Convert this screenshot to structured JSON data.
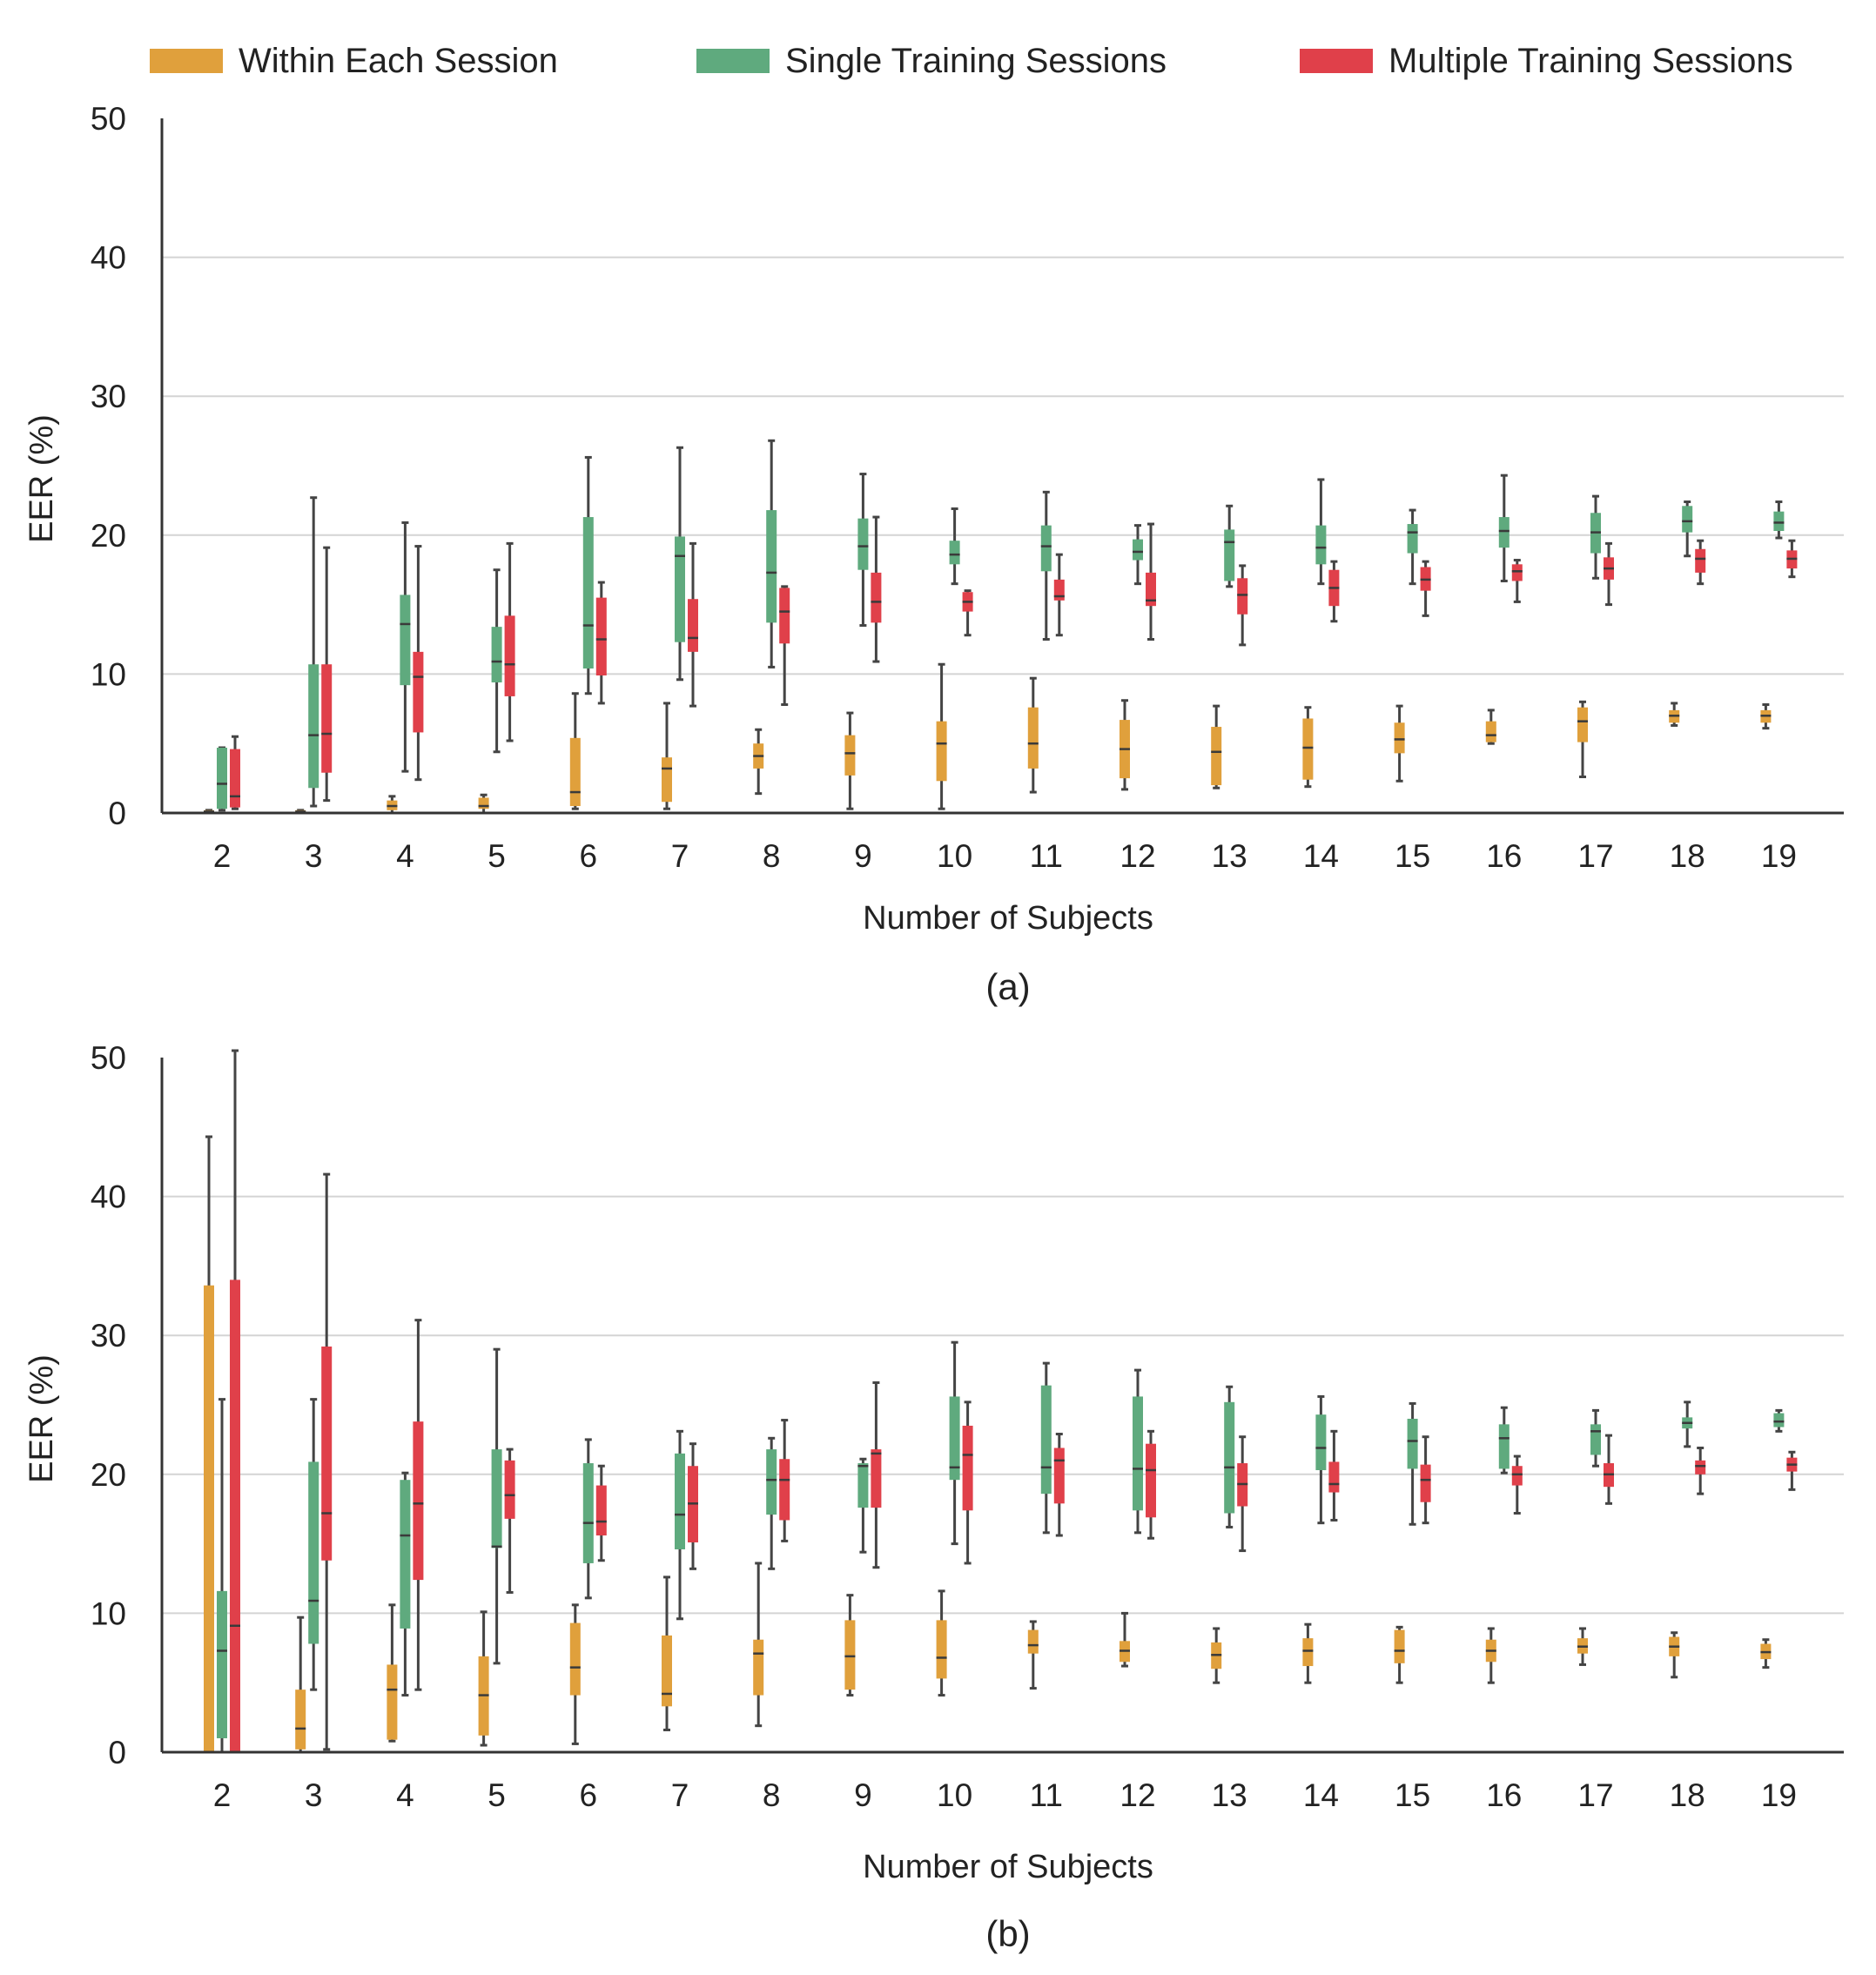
{
  "legend": [
    {
      "key": "within",
      "label": "Within Each Session",
      "color": "#E0A03C"
    },
    {
      "key": "single",
      "label": "Single Training Sessions",
      "color": "#5FAA7E"
    },
    {
      "key": "multiple",
      "label": "Multiple Training Sessions",
      "color": "#E0404A"
    }
  ],
  "chart_data": [
    {
      "type": "box",
      "caption": "(a)",
      "xlabel": "Number of Subjects",
      "ylabel": "EER (%)",
      "ylim": [
        0,
        50
      ],
      "yticks": [
        0,
        10,
        20,
        30,
        40,
        50
      ],
      "grid": true,
      "legend_position": "top",
      "categories": [
        "2",
        "3",
        "4",
        "5",
        "6",
        "7",
        "8",
        "9",
        "10",
        "11",
        "12",
        "13",
        "14",
        "15",
        "16",
        "17",
        "18",
        "19"
      ],
      "series": [
        {
          "name": "Within Each Session",
          "color": "#E0A03C",
          "boxes": [
            [
              0,
              0,
              0.1,
              0.2,
              0.2
            ],
            [
              0,
              0,
              0.1,
              0.2,
              0.2
            ],
            [
              0,
              0.2,
              0.5,
              0.9,
              1.2
            ],
            [
              0,
              0.3,
              0.5,
              1.1,
              1.3
            ],
            [
              0.3,
              0.5,
              1.5,
              5.4,
              8.6
            ],
            [
              0.3,
              0.8,
              3.2,
              4.0,
              7.9
            ],
            [
              1.4,
              3.2,
              4.1,
              5.0,
              6.0
            ],
            [
              0.3,
              2.7,
              4.3,
              5.6,
              7.2
            ],
            [
              0.3,
              2.3,
              5.0,
              6.6,
              10.7
            ],
            [
              1.5,
              3.2,
              5.0,
              7.6,
              9.7
            ],
            [
              1.7,
              2.5,
              4.6,
              6.7,
              8.1
            ],
            [
              1.8,
              2.0,
              4.4,
              6.2,
              7.7
            ],
            [
              1.9,
              2.4,
              4.7,
              6.8,
              7.6
            ],
            [
              2.3,
              4.3,
              5.3,
              6.5,
              7.7
            ],
            [
              5.0,
              5.1,
              5.6,
              6.6,
              7.4
            ],
            [
              2.6,
              5.1,
              6.6,
              7.6,
              8.0
            ],
            [
              6.3,
              6.5,
              7.0,
              7.4,
              7.9
            ],
            [
              6.1,
              6.5,
              7.0,
              7.4,
              7.8
            ]
          ]
        },
        {
          "name": "Single Training Sessions",
          "color": "#5FAA7E",
          "boxes": [
            [
              0.2,
              0.3,
              2.1,
              4.7,
              4.7
            ],
            [
              0.5,
              1.8,
              5.6,
              10.7,
              22.7
            ],
            [
              3.0,
              9.2,
              13.6,
              15.7,
              20.9
            ],
            [
              4.4,
              9.4,
              10.9,
              13.4,
              17.5
            ],
            [
              8.6,
              10.4,
              13.5,
              21.3,
              25.6
            ],
            [
              9.6,
              12.3,
              18.5,
              19.9,
              26.3
            ],
            [
              10.5,
              13.7,
              17.3,
              21.8,
              26.8
            ],
            [
              13.5,
              17.5,
              19.2,
              21.2,
              24.4
            ],
            [
              16.5,
              17.9,
              18.6,
              19.6,
              21.9
            ],
            [
              12.5,
              17.4,
              19.2,
              20.7,
              23.1
            ],
            [
              16.5,
              18.2,
              18.8,
              19.7,
              20.7
            ],
            [
              16.3,
              16.7,
              19.5,
              20.4,
              22.1
            ],
            [
              16.5,
              17.9,
              19.1,
              20.7,
              24.0
            ],
            [
              16.5,
              18.7,
              20.2,
              20.8,
              21.8
            ],
            [
              16.7,
              19.1,
              20.3,
              21.3,
              24.3
            ],
            [
              16.9,
              18.7,
              20.2,
              21.6,
              22.8
            ],
            [
              18.5,
              20.2,
              21.0,
              22.1,
              22.4
            ],
            [
              19.8,
              20.3,
              20.9,
              21.7,
              22.4
            ]
          ]
        },
        {
          "name": "Multiple Training Sessions",
          "color": "#E0404A",
          "boxes": [
            [
              0.3,
              0.4,
              1.2,
              4.6,
              5.5
            ],
            [
              0.9,
              2.9,
              5.7,
              10.7,
              19.1
            ],
            [
              2.4,
              5.8,
              9.8,
              11.6,
              19.2
            ],
            [
              5.2,
              8.4,
              10.7,
              14.2,
              19.4
            ],
            [
              7.9,
              9.9,
              12.5,
              15.5,
              16.6
            ],
            [
              7.7,
              11.6,
              12.6,
              15.4,
              19.4
            ],
            [
              7.8,
              12.2,
              14.5,
              16.2,
              16.3
            ],
            [
              10.9,
              13.7,
              15.2,
              17.3,
              21.3
            ],
            [
              12.8,
              14.5,
              15.2,
              15.9,
              16.0
            ],
            [
              12.8,
              15.3,
              15.6,
              16.8,
              18.6
            ],
            [
              12.5,
              14.9,
              15.3,
              17.3,
              20.8
            ],
            [
              12.1,
              14.3,
              15.7,
              16.9,
              17.8
            ],
            [
              13.8,
              14.9,
              16.2,
              17.5,
              18.1
            ],
            [
              14.2,
              16.0,
              16.8,
              17.7,
              18.1
            ],
            [
              15.2,
              16.7,
              17.4,
              17.9,
              18.2
            ],
            [
              15.0,
              16.8,
              17.6,
              18.4,
              19.4
            ],
            [
              16.5,
              17.3,
              18.3,
              19.0,
              19.6
            ],
            [
              17.0,
              17.6,
              18.3,
              18.9,
              19.6
            ]
          ]
        }
      ]
    },
    {
      "type": "box",
      "caption": "(b)",
      "xlabel": "Number of Subjects",
      "ylabel": "EER (%)",
      "ylim": [
        0,
        50
      ],
      "yticks": [
        0,
        10,
        20,
        30,
        40,
        50
      ],
      "grid": true,
      "categories": [
        "2",
        "3",
        "4",
        "5",
        "6",
        "7",
        "8",
        "9",
        "10",
        "11",
        "12",
        "13",
        "14",
        "15",
        "16",
        "17",
        "18",
        "19"
      ],
      "series": [
        {
          "name": "Within Each Session",
          "color": "#E0A03C",
          "boxes": [
            [
              0,
              0,
              0,
              33.6,
              44.3
            ],
            [
              0,
              0.2,
              1.7,
              4.5,
              9.7
            ],
            [
              0.8,
              0.9,
              4.5,
              6.3,
              10.6
            ],
            [
              0.5,
              1.2,
              4.1,
              6.9,
              10.1
            ],
            [
              0.6,
              4.1,
              6.1,
              9.3,
              10.6
            ],
            [
              1.6,
              3.3,
              4.2,
              8.4,
              12.6
            ],
            [
              1.9,
              4.1,
              7.1,
              8.1,
              13.6
            ],
            [
              4.1,
              4.5,
              6.9,
              9.5,
              11.3
            ],
            [
              4.1,
              5.3,
              6.8,
              9.5,
              11.6
            ],
            [
              4.6,
              7.1,
              7.7,
              8.8,
              9.4
            ],
            [
              6.2,
              6.5,
              7.3,
              8.0,
              10.0
            ],
            [
              5.0,
              6.0,
              7.0,
              7.9,
              8.9
            ],
            [
              5.0,
              6.2,
              7.3,
              8.2,
              9.2
            ],
            [
              5.0,
              6.4,
              7.3,
              8.8,
              9.0
            ],
            [
              5.0,
              6.5,
              7.3,
              8.1,
              8.9
            ],
            [
              6.3,
              7.1,
              7.6,
              8.2,
              8.9
            ],
            [
              5.4,
              6.9,
              7.6,
              8.3,
              8.6
            ],
            [
              6.1,
              6.7,
              7.2,
              7.8,
              8.1
            ]
          ]
        },
        {
          "name": "Single Training Sessions",
          "color": "#5FAA7E",
          "boxes": [
            [
              0,
              1.0,
              7.3,
              11.6,
              25.4
            ],
            [
              4.5,
              7.8,
              10.9,
              20.9,
              25.4
            ],
            [
              4.1,
              8.9,
              15.6,
              19.6,
              20.1
            ],
            [
              6.4,
              14.7,
              14.8,
              21.8,
              29.0
            ],
            [
              11.1,
              13.6,
              16.5,
              20.8,
              22.5
            ],
            [
              9.6,
              14.6,
              17.1,
              21.5,
              23.1
            ],
            [
              13.2,
              17.1,
              19.6,
              21.8,
              22.6
            ],
            [
              14.4,
              17.6,
              20.6,
              20.8,
              21.1
            ],
            [
              15.0,
              19.6,
              20.5,
              25.6,
              29.5
            ],
            [
              15.8,
              18.6,
              20.5,
              26.4,
              28.0
            ],
            [
              15.8,
              17.4,
              20.4,
              25.6,
              27.5
            ],
            [
              16.2,
              17.2,
              20.5,
              25.2,
              26.3
            ],
            [
              16.5,
              20.3,
              21.9,
              24.3,
              25.6
            ],
            [
              16.4,
              20.4,
              22.4,
              24.0,
              25.1
            ],
            [
              20.1,
              20.4,
              22.6,
              23.6,
              24.8
            ],
            [
              20.6,
              21.4,
              23.1,
              23.6,
              24.6
            ],
            [
              22.0,
              23.3,
              23.7,
              24.1,
              25.2
            ],
            [
              23.1,
              23.4,
              23.8,
              24.4,
              24.6
            ]
          ]
        },
        {
          "name": "Multiple Training Sessions",
          "color": "#E0404A",
          "boxes": [
            [
              0,
              0,
              9.1,
              34.0,
              50.5
            ],
            [
              0.2,
              13.8,
              17.2,
              29.2,
              41.6
            ],
            [
              4.5,
              12.4,
              17.9,
              23.8,
              31.1
            ],
            [
              11.5,
              16.8,
              18.5,
              21.0,
              21.8
            ],
            [
              13.8,
              15.6,
              16.6,
              19.2,
              20.6
            ],
            [
              13.2,
              15.1,
              17.9,
              20.6,
              22.2
            ],
            [
              15.2,
              16.7,
              19.6,
              21.1,
              23.9
            ],
            [
              13.3,
              17.6,
              21.5,
              21.8,
              26.6
            ],
            [
              13.6,
              17.4,
              21.4,
              23.5,
              25.2
            ],
            [
              15.6,
              17.9,
              21.0,
              21.9,
              22.9
            ],
            [
              15.4,
              16.9,
              20.3,
              22.2,
              23.1
            ],
            [
              14.5,
              17.7,
              19.3,
              20.8,
              22.7
            ],
            [
              16.7,
              18.7,
              19.3,
              20.9,
              23.1
            ],
            [
              16.5,
              18.0,
              19.6,
              20.7,
              22.7
            ],
            [
              17.2,
              19.2,
              20.0,
              20.6,
              21.3
            ],
            [
              17.9,
              19.1,
              20.0,
              20.8,
              22.8
            ],
            [
              18.6,
              20.0,
              20.6,
              21.0,
              21.9
            ],
            [
              18.9,
              20.2,
              20.7,
              21.2,
              21.6
            ]
          ]
        }
      ]
    }
  ]
}
